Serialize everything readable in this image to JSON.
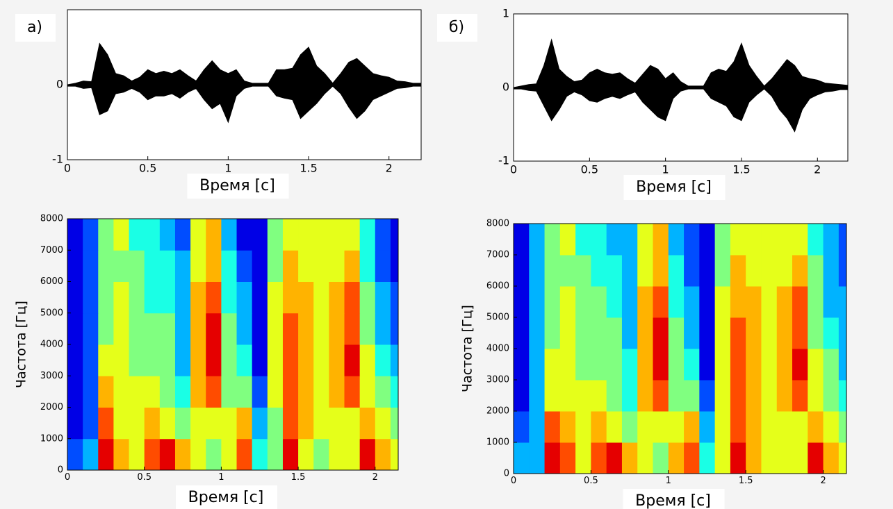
{
  "chart_data": [
    {
      "type": "line",
      "panel_label": "а)",
      "x_label": "Время [с]",
      "color": "#000000",
      "x": [
        0,
        0.05,
        0.1,
        0.15,
        0.2,
        0.25,
        0.3,
        0.35,
        0.4,
        0.45,
        0.5,
        0.55,
        0.6,
        0.65,
        0.7,
        0.75,
        0.8,
        0.85,
        0.9,
        0.95,
        1,
        1.05,
        1.1,
        1.15,
        1.2,
        1.25,
        1.3,
        1.35,
        1.4,
        1.45,
        1.5,
        1.55,
        1.6,
        1.65,
        1.7,
        1.75,
        1.8,
        1.85,
        1.9,
        1.95,
        2,
        2.05,
        2.1,
        2.15,
        2.2
      ],
      "series": [
        {
          "values": [
            0,
            0.02,
            0.05,
            0.04,
            0.55,
            0.4,
            0.15,
            0.12,
            0.05,
            0.1,
            0.2,
            0.15,
            0.18,
            0.15,
            0.2,
            0.12,
            0.05,
            0.2,
            0.32,
            0.2,
            0.15,
            0.2,
            0.05,
            0.02,
            0.02,
            0.02,
            0.2,
            0.2,
            0.22,
            0.4,
            0.5,
            0.25,
            0.15,
            0.02,
            0.15,
            0.3,
            0.35,
            0.25,
            0.15,
            0.12,
            0.1,
            0.05,
            0.04,
            0.02,
            0.02
          ]
        },
        {
          "values": [
            -0.02,
            -0.02,
            -0.05,
            -0.04,
            -0.4,
            -0.35,
            -0.12,
            -0.1,
            -0.05,
            -0.1,
            -0.2,
            -0.15,
            -0.15,
            -0.12,
            -0.18,
            -0.1,
            -0.05,
            -0.2,
            -0.32,
            -0.25,
            -0.5,
            -0.15,
            -0.05,
            -0.02,
            -0.02,
            -0.02,
            -0.15,
            -0.18,
            -0.2,
            -0.45,
            -0.35,
            -0.25,
            -0.12,
            -0.02,
            -0.12,
            -0.3,
            -0.45,
            -0.35,
            -0.2,
            -0.15,
            -0.1,
            -0.05,
            -0.04,
            -0.02,
            -0.02
          ]
        }
      ],
      "xlim": [
        0,
        2.2
      ],
      "xticks": [
        0,
        0.5,
        1,
        1.5,
        2
      ],
      "ylim": [
        -1,
        1
      ],
      "yticks": [
        -1,
        0
      ]
    },
    {
      "type": "line",
      "panel_label": "б)",
      "x_label": "Время [с]",
      "color": "#000000",
      "x": [
        0,
        0.05,
        0.1,
        0.15,
        0.2,
        0.25,
        0.3,
        0.35,
        0.4,
        0.45,
        0.5,
        0.55,
        0.6,
        0.65,
        0.7,
        0.75,
        0.8,
        0.85,
        0.9,
        0.95,
        1,
        1.05,
        1.1,
        1.15,
        1.2,
        1.25,
        1.3,
        1.35,
        1.4,
        1.45,
        1.5,
        1.55,
        1.6,
        1.65,
        1.7,
        1.75,
        1.8,
        1.85,
        1.9,
        1.95,
        2,
        2.05,
        2.1,
        2.15,
        2.2
      ],
      "series": [
        {
          "values": [
            0,
            0.02,
            0.04,
            0.05,
            0.3,
            0.65,
            0.25,
            0.15,
            0.08,
            0.1,
            0.2,
            0.25,
            0.2,
            0.18,
            0.2,
            0.12,
            0.06,
            0.18,
            0.3,
            0.25,
            0.12,
            0.2,
            0.08,
            0.02,
            0.02,
            0.02,
            0.2,
            0.25,
            0.22,
            0.35,
            0.6,
            0.3,
            0.15,
            0.02,
            0.12,
            0.25,
            0.38,
            0.3,
            0.15,
            0.12,
            0.1,
            0.06,
            0.05,
            0.04,
            0.03
          ]
        },
        {
          "values": [
            -0.02,
            -0.02,
            -0.04,
            -0.05,
            -0.25,
            -0.45,
            -0.3,
            -0.12,
            -0.06,
            -0.1,
            -0.18,
            -0.2,
            -0.15,
            -0.12,
            -0.15,
            -0.1,
            -0.06,
            -0.2,
            -0.3,
            -0.4,
            -0.45,
            -0.15,
            -0.05,
            -0.02,
            -0.02,
            -0.02,
            -0.15,
            -0.2,
            -0.25,
            -0.4,
            -0.45,
            -0.2,
            -0.1,
            -0.02,
            -0.12,
            -0.3,
            -0.42,
            -0.6,
            -0.3,
            -0.15,
            -0.1,
            -0.06,
            -0.05,
            -0.03,
            -0.03
          ]
        }
      ],
      "xlim": [
        0,
        2.2
      ],
      "xticks": [
        0,
        0.5,
        1,
        1.5,
        2
      ],
      "ylim": [
        -1,
        1
      ],
      "yticks": [
        -1,
        0,
        1
      ]
    },
    {
      "type": "heatmap",
      "x_label": "Время [с]",
      "y_label": "Частота [Гц]",
      "colormap": "jet",
      "zlim": [
        0,
        10
      ],
      "x": [
        0,
        0.1,
        0.2,
        0.3,
        0.4,
        0.5,
        0.6,
        0.7,
        0.8,
        0.9,
        1,
        1.1,
        1.2,
        1.3,
        1.4,
        1.5,
        1.6,
        1.7,
        1.8,
        1.9,
        2,
        2.1
      ],
      "y": [
        0,
        1000,
        2000,
        3000,
        4000,
        5000,
        6000,
        7000
      ],
      "z": [
        [
          2,
          3,
          9,
          7,
          6,
          8,
          9,
          7,
          6,
          5,
          6,
          8,
          4,
          5,
          9,
          6,
          5,
          6,
          6,
          9,
          7,
          6
        ],
        [
          1,
          2,
          8,
          6,
          6,
          7,
          6,
          5,
          6,
          6,
          6,
          7,
          3,
          5,
          8,
          7,
          6,
          6,
          6,
          7,
          6,
          5
        ],
        [
          1,
          2,
          7,
          6,
          6,
          6,
          5,
          4,
          7,
          8,
          5,
          5,
          2,
          6,
          8,
          7,
          6,
          7,
          8,
          6,
          5,
          4
        ],
        [
          1,
          2,
          6,
          6,
          5,
          5,
          5,
          3,
          7,
          9,
          5,
          4,
          1,
          6,
          8,
          7,
          6,
          7,
          9,
          6,
          4,
          3
        ],
        [
          1,
          2,
          5,
          6,
          5,
          5,
          5,
          3,
          7,
          9,
          5,
          3,
          1,
          6,
          8,
          7,
          6,
          7,
          8,
          5,
          3,
          2
        ],
        [
          1,
          2,
          5,
          6,
          5,
          4,
          4,
          3,
          7,
          8,
          4,
          3,
          1,
          6,
          7,
          7,
          6,
          7,
          8,
          5,
          3,
          2
        ],
        [
          1,
          2,
          5,
          5,
          5,
          4,
          4,
          3,
          6,
          7,
          4,
          2,
          1,
          5,
          7,
          6,
          6,
          6,
          7,
          4,
          2,
          1
        ],
        [
          1,
          2,
          5,
          6,
          4,
          4,
          3,
          2,
          6,
          7,
          3,
          1,
          1,
          5,
          6,
          6,
          6,
          6,
          6,
          4,
          2,
          1
        ]
      ],
      "xlim": [
        0,
        2.15
      ],
      "xticks": [
        0,
        0.5,
        1,
        1.5,
        2
      ],
      "ylim": [
        0,
        8000
      ],
      "yticks": [
        0,
        1000,
        2000,
        3000,
        4000,
        5000,
        6000,
        7000,
        8000
      ]
    },
    {
      "type": "heatmap",
      "x_label": "Время [с]",
      "y_label": "Частота [Гц]",
      "colormap": "jet",
      "zlim": [
        0,
        10
      ],
      "x": [
        0,
        0.1,
        0.2,
        0.3,
        0.4,
        0.5,
        0.6,
        0.7,
        0.8,
        0.9,
        1,
        1.1,
        1.2,
        1.3,
        1.4,
        1.5,
        1.6,
        1.7,
        1.8,
        1.9,
        2,
        2.1
      ],
      "y": [
        0,
        1000,
        2000,
        3000,
        4000,
        5000,
        6000,
        7000
      ],
      "z": [
        [
          3,
          3,
          9,
          8,
          6,
          8,
          9,
          7,
          6,
          5,
          7,
          8,
          4,
          6,
          9,
          7,
          6,
          6,
          6,
          9,
          7,
          6
        ],
        [
          2,
          3,
          8,
          7,
          6,
          7,
          6,
          5,
          6,
          6,
          6,
          7,
          3,
          6,
          8,
          7,
          6,
          6,
          6,
          7,
          6,
          5
        ],
        [
          1,
          3,
          6,
          6,
          6,
          6,
          5,
          4,
          7,
          8,
          5,
          5,
          2,
          6,
          8,
          7,
          6,
          7,
          8,
          6,
          5,
          4
        ],
        [
          1,
          3,
          6,
          6,
          5,
          5,
          5,
          4,
          7,
          9,
          5,
          4,
          1,
          6,
          8,
          7,
          6,
          7,
          9,
          6,
          5,
          3
        ],
        [
          1,
          3,
          5,
          6,
          5,
          5,
          5,
          3,
          7,
          9,
          5,
          3,
          1,
          6,
          8,
          7,
          6,
          7,
          8,
          5,
          4,
          3
        ],
        [
          1,
          3,
          5,
          6,
          5,
          5,
          4,
          3,
          7,
          8,
          4,
          3,
          1,
          6,
          7,
          7,
          6,
          7,
          8,
          5,
          3,
          3
        ],
        [
          1,
          3,
          5,
          5,
          5,
          4,
          4,
          3,
          6,
          7,
          4,
          2,
          1,
          5,
          7,
          6,
          6,
          6,
          7,
          5,
          3,
          2
        ],
        [
          1,
          3,
          5,
          6,
          4,
          4,
          3,
          3,
          6,
          7,
          3,
          2,
          1,
          5,
          6,
          6,
          6,
          6,
          6,
          4,
          3,
          2
        ]
      ],
      "xlim": [
        0,
        2.15
      ],
      "xticks": [
        0,
        0.5,
        1,
        1.5,
        2
      ],
      "ylim": [
        0,
        8000
      ],
      "yticks": [
        0,
        1000,
        2000,
        3000,
        4000,
        5000,
        6000,
        7000,
        8000
      ]
    }
  ]
}
